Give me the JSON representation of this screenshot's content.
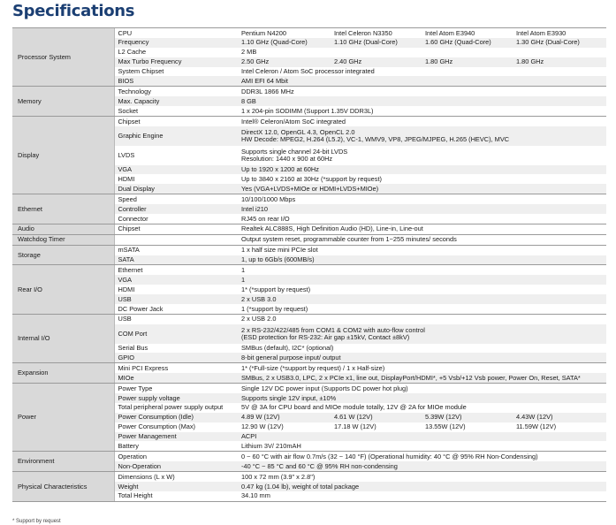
{
  "title": "Specifications",
  "footnote": "* Support by request",
  "sections": [
    {
      "category": "Processor System",
      "rows": [
        {
          "item": "CPU",
          "values": [
            "Pentium N4200",
            "Intel Celeron N3350",
            "Intel Atom E3940",
            "Intel Atom E3930"
          ]
        },
        {
          "item": "Frequency",
          "values": [
            "1.10 GHz (Quad-Core)",
            "1.10 GHz (Dual-Core)",
            "1.60 GHz (Quad-Core)",
            "1.30 GHz (Dual-Core)"
          ]
        },
        {
          "item": "L2 Cache",
          "value": "2 MB"
        },
        {
          "item": "Max Turbo Frequency",
          "values": [
            "2.50 GHz",
            "2.40 GHz",
            "1.80 GHz",
            "1.80 GHz"
          ]
        },
        {
          "item": "System Chipset",
          "value": "Intel Celeron / Atom SoC processor integrated"
        },
        {
          "item": "BIOS",
          "value": "AMI EFI 64 Mbit"
        }
      ]
    },
    {
      "category": "Memory",
      "rows": [
        {
          "item": "Technology",
          "value": "DDR3L 1866 MHz"
        },
        {
          "item": "Max. Capacity",
          "value": "8 GB"
        },
        {
          "item": "Socket",
          "value": "1 x 204-pin SODIMM (Support 1.35V DDR3L)"
        }
      ]
    },
    {
      "category": "Display",
      "rows": [
        {
          "item": "Chipset",
          "value": "Intel® Celeron/Atom SoC integrated"
        },
        {
          "item": "Graphic Engine",
          "lines": [
            "DirectX 12.0, OpenGL 4.3, OpenCL 2.0",
            "HW Decode: MPEG2, H.264 (L5.2), VC-1, WMV9, VP8, JPEG/MJPEG, H.265 (HEVC), MVC"
          ]
        },
        {
          "item": "LVDS",
          "lines": [
            "Supports single channel 24-bit LVDS",
            "Resolution: 1440 x 900 at 60Hz"
          ]
        },
        {
          "item": "VGA",
          "value": "Up to 1920 x 1200 at 60Hz"
        },
        {
          "item": "HDMI",
          "value": "Up to 3840 x 2160 at 30Hz (*support by request)"
        },
        {
          "item": "Dual Display",
          "value": "Yes (VGA+LVDS+MIOe or HDMI+LVDS+MIOe)"
        }
      ]
    },
    {
      "category": "Ethernet",
      "rows": [
        {
          "item": "Speed",
          "value": "10/100/1000 Mbps"
        },
        {
          "item": "Controller",
          "value": "Intel i210"
        },
        {
          "item": "Connector",
          "value": "RJ45 on rear I/O"
        }
      ]
    },
    {
      "category": "Audio",
      "rows": [
        {
          "item": "Chipset",
          "value": "Realtek ALC888S, High Definition Audio (HD), Line-in, Line-out"
        }
      ]
    },
    {
      "category": "Watchdog Timer",
      "rows": [
        {
          "item": "",
          "value": "Output system reset, programmable counter from 1~255 minutes/ seconds"
        }
      ]
    },
    {
      "category": "Storage",
      "rows": [
        {
          "item": "mSATA",
          "value": "1 x half size mini PCIe slot"
        },
        {
          "item": "SATA",
          "value": "1, up to 6Gb/s (600MB/s)"
        }
      ]
    },
    {
      "category": "Rear I/O",
      "rows": [
        {
          "item": "Ethernet",
          "value": "1"
        },
        {
          "item": "VGA",
          "value": "1"
        },
        {
          "item": "HDMI",
          "value": "1* (*support by request)"
        },
        {
          "item": "USB",
          "value": "2 x USB 3.0"
        },
        {
          "item": "DC Power Jack",
          "value": "1 (*support by request)"
        }
      ]
    },
    {
      "category": "Internal I/O",
      "rows": [
        {
          "item": "USB",
          "value": "2 x USB 2.0"
        },
        {
          "item": "COM Port",
          "lines": [
            "2 x RS-232/422/485 from COM1 & COM2 with auto-flow control",
            "(ESD protection for RS-232: Air gap ±15kV, Contact ±8kV)"
          ]
        },
        {
          "item": "Serial Bus",
          "value": "SMBus (default), I2C* (optional)"
        },
        {
          "item": "GPIO",
          "value": "8-bit general purpose input/ output"
        }
      ]
    },
    {
      "category": "Expansion",
      "rows": [
        {
          "item": "Mini PCI Express",
          "value": "1* (*Full-size (*support by request) / 1 x Half-size)"
        },
        {
          "item": "MIOe",
          "value": "SMBus, 2 x USB3.0, LPC, 2 x PCIe x1, line out, DisplayPort/HDMI*, +5 Vsb/+12 Vsb power, Power On, Reset, SATA*"
        }
      ]
    },
    {
      "category": "Power",
      "rows": [
        {
          "item": "Power Type",
          "value": "Single 12V DC power input (Supports DC power hot plug)"
        },
        {
          "item": "Power supply voltage",
          "value": "Supports single 12V input, ±10%"
        },
        {
          "item": "Total peripheral power supply output",
          "value": "5V @ 3A for CPU board and MIOe module totally, 12V @ 2A for MIOe module"
        },
        {
          "item": "Power Consumption (Idle)",
          "values": [
            "4.89 W (12V)",
            "4.61 W (12V)",
            "5.39W (12V)",
            "4.43W (12V)"
          ]
        },
        {
          "item": "Power Consumption (Max)",
          "values": [
            "12.90 W (12V)",
            "17.18 W (12V)",
            "13.55W (12V)",
            "11.59W (12V)"
          ]
        },
        {
          "item": "Power Management",
          "value": "ACPI"
        },
        {
          "item": "Battery",
          "value": "Lithium 3V/ 210mAH"
        }
      ]
    },
    {
      "category": "Environment",
      "rows": [
        {
          "item": "Operation",
          "value": "0 ~ 60 °C with air flow 0.7m/s (32 ~ 140 °F) (Operational humidity: 40 °C @ 95% RH Non-Condensing)"
        },
        {
          "item": "Non-Operation",
          "value": "-40 °C ~ 85 °C and 60 °C @ 95% RH non-condensing"
        }
      ]
    },
    {
      "category": "Physical Characteristics",
      "rows": [
        {
          "item": "Dimensions (L x W)",
          "value": "100 x 72 mm (3.9\" x 2.8\")"
        },
        {
          "item": "Weight",
          "value": "0.47 kg (1.04 lb), weight of total package"
        },
        {
          "item": "Total Height",
          "value": "34.10 mm"
        }
      ]
    }
  ]
}
